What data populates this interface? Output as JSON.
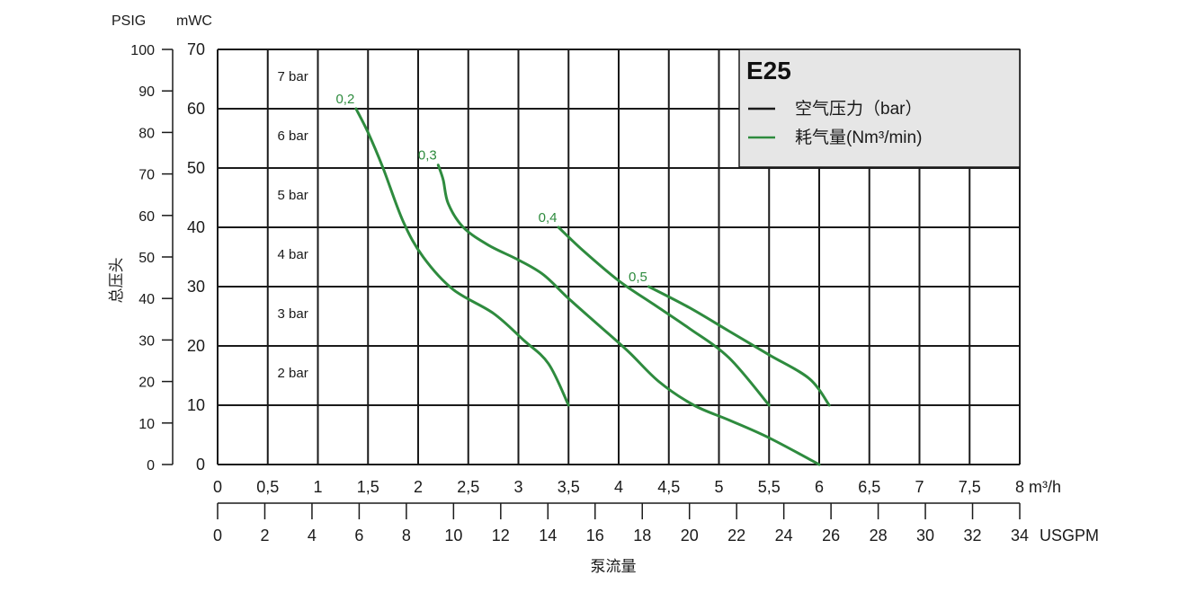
{
  "chart_data": {
    "type": "line",
    "title": "E25",
    "colors": {
      "grid": "#1a1a1a",
      "curve": "#2e8b3e",
      "legend_bg": "#e6e6e6"
    },
    "y_left_outer": {
      "label": "PSIG",
      "ticks": [
        0,
        10,
        20,
        30,
        40,
        50,
        60,
        70,
        80,
        90,
        100
      ],
      "range": [
        0,
        100
      ]
    },
    "y_left_inner": {
      "label": "mWC",
      "ticks": [
        0,
        10,
        20,
        30,
        40,
        50,
        60,
        70
      ],
      "range": [
        0,
        70
      ]
    },
    "y_title": "总压头",
    "x_m3h": {
      "unit": "m³/h",
      "range": [
        0,
        8
      ],
      "tick_labels": [
        "0",
        "0,5",
        "1",
        "1,5",
        "2",
        "2,5",
        "3",
        "3,5",
        "4",
        "4,5",
        "5",
        "5,5",
        "6",
        "6,5",
        "7",
        "7,5",
        "8"
      ]
    },
    "x_usgpm": {
      "unit": "USGPM",
      "range": [
        0,
        34
      ],
      "tick_labels": [
        "0",
        "2",
        "4",
        "6",
        "8",
        "10",
        "12",
        "14",
        "16",
        "18",
        "20",
        "22",
        "24",
        "26",
        "28",
        "30",
        "32",
        "34"
      ]
    },
    "x_title": "泵流量",
    "legend": {
      "items": [
        {
          "label": "空气压力（bar）",
          "color": "#1a1a1a"
        },
        {
          "label": "耗气量(Nm³/min)",
          "color": "#2e8b3e"
        }
      ]
    },
    "air_pressure_lines": [
      {
        "label": "7 bar",
        "mwc": 70
      },
      {
        "label": "6 bar",
        "mwc": 60
      },
      {
        "label": "5 bar",
        "mwc": 50
      },
      {
        "label": "4 bar",
        "mwc": 40
      },
      {
        "label": "3 bar",
        "mwc": 30
      },
      {
        "label": "2 bar",
        "mwc": 20
      }
    ],
    "series": [
      {
        "name": "0,2",
        "points": [
          [
            1.38,
            60
          ],
          [
            1.5,
            56
          ],
          [
            1.65,
            50
          ],
          [
            1.85,
            41
          ],
          [
            2.05,
            35
          ],
          [
            2.35,
            29.5
          ],
          [
            2.75,
            25.5
          ],
          [
            3.05,
            21
          ],
          [
            3.3,
            17
          ],
          [
            3.5,
            10
          ]
        ]
      },
      {
        "name": "0,3",
        "points": [
          [
            2.2,
            50.5
          ],
          [
            2.25,
            48
          ],
          [
            2.3,
            44
          ],
          [
            2.45,
            40
          ],
          [
            2.7,
            37
          ],
          [
            3.0,
            34.5
          ],
          [
            3.25,
            32
          ],
          [
            3.5,
            28
          ],
          [
            3.8,
            23.5
          ],
          [
            4.1,
            19
          ],
          [
            4.4,
            14
          ],
          [
            4.75,
            10
          ],
          [
            5.1,
            7.5
          ],
          [
            5.5,
            4.5
          ],
          [
            6.0,
            0
          ]
        ]
      },
      {
        "name": "0,4",
        "points": [
          [
            3.4,
            40
          ],
          [
            3.65,
            36
          ],
          [
            4.0,
            31
          ],
          [
            4.35,
            27
          ],
          [
            4.7,
            23
          ],
          [
            5.1,
            18
          ],
          [
            5.5,
            10
          ]
        ]
      },
      {
        "name": "0,5",
        "points": [
          [
            4.3,
            30
          ],
          [
            4.7,
            26.5
          ],
          [
            5.1,
            22.5
          ],
          [
            5.5,
            18.5
          ],
          [
            5.9,
            14.5
          ],
          [
            6.1,
            10
          ]
        ]
      }
    ]
  }
}
